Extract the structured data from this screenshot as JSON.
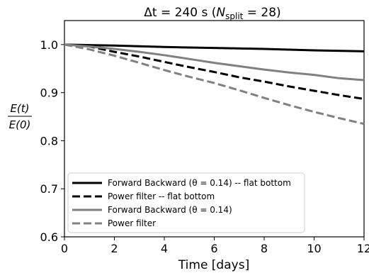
{
  "chart_data": {
    "type": "line",
    "title": {
      "prefix": "Δt = 240 s (",
      "n_sym": "N",
      "n_sub": "split",
      "suffix": " = 28)"
    },
    "xlabel": "Time [days]",
    "ylabel": {
      "numerator": "E(t)",
      "denominator": "E(0)"
    },
    "xlim": [
      0,
      12
    ],
    "ylim": [
      0.6,
      1.05
    ],
    "xticks": [
      0,
      2,
      4,
      6,
      8,
      10,
      12
    ],
    "yticks": [
      0.6,
      0.7,
      0.8,
      0.9,
      1.0
    ],
    "ytick_labels": [
      "0.6",
      "0.7",
      "0.8",
      "0.9",
      "1.0"
    ],
    "grid": false,
    "legend_position": "lower-left",
    "series": [
      {
        "name": "Forward Backward (θ = 0.14) -- flat bottom",
        "color": "#000000",
        "dash": "solid",
        "x": [
          0,
          2,
          4,
          6,
          8,
          10,
          12
        ],
        "y": [
          1.0,
          0.998,
          0.995,
          0.993,
          0.991,
          0.988,
          0.986
        ]
      },
      {
        "name": "Power filter -- flat bottom",
        "color": "#000000",
        "dash": "dashed",
        "x": [
          0,
          1,
          2,
          3,
          4,
          5,
          6,
          7,
          8,
          9,
          10,
          11,
          12
        ],
        "y": [
          1.0,
          0.996,
          0.985,
          0.975,
          0.964,
          0.953,
          0.943,
          0.932,
          0.923,
          0.913,
          0.904,
          0.895,
          0.887
        ]
      },
      {
        "name": "Forward Backward (θ = 0.14)",
        "color": "#808080",
        "dash": "solid",
        "x": [
          0,
          1,
          2,
          3,
          4,
          5,
          6,
          7,
          8,
          9,
          10,
          11,
          12
        ],
        "y": [
          1.0,
          0.996,
          0.991,
          0.985,
          0.978,
          0.97,
          0.962,
          0.955,
          0.948,
          0.942,
          0.937,
          0.93,
          0.926
        ]
      },
      {
        "name": "Power filter",
        "color": "#808080",
        "dash": "dashed",
        "x": [
          0,
          1,
          2,
          3,
          4,
          5,
          6,
          7,
          8,
          9,
          10,
          11,
          12
        ],
        "y": [
          1.0,
          0.99,
          0.977,
          0.962,
          0.947,
          0.933,
          0.92,
          0.905,
          0.889,
          0.874,
          0.86,
          0.847,
          0.835
        ]
      }
    ]
  }
}
